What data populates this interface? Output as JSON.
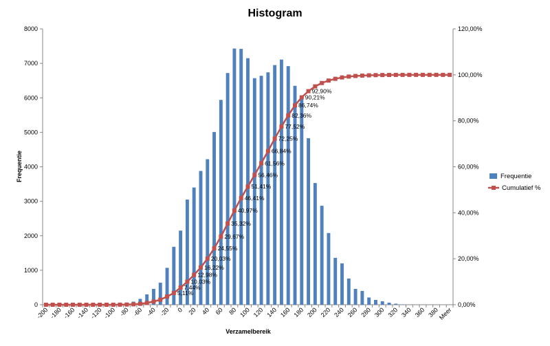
{
  "chart_data": {
    "type": "bar",
    "title": "Histogram",
    "xlabel": "Verzamelbereik",
    "ylabel": "Frequentie",
    "y2label": "",
    "ylim": [
      0,
      8000
    ],
    "y2lim": [
      0,
      120
    ],
    "yticks": [
      "0",
      "1000",
      "2000",
      "3000",
      "4000",
      "5000",
      "6000",
      "7000",
      "8000"
    ],
    "y2ticks": [
      "0,00%",
      "20,00%",
      "40,00%",
      "60,00%",
      "80,00%",
      "100,00%",
      "120,00%"
    ],
    "legend_position": "right",
    "grid": false,
    "categories": [
      "-200",
      "-190",
      "-180",
      "-170",
      "-160",
      "-150",
      "-140",
      "-130",
      "-120",
      "-110",
      "-100",
      "-90",
      "-80",
      "-70",
      "-60",
      "-50",
      "-40",
      "-30",
      "-20",
      "-10",
      "0",
      "10",
      "20",
      "30",
      "40",
      "50",
      "60",
      "70",
      "80",
      "90",
      "100",
      "110",
      "120",
      "130",
      "140",
      "150",
      "160",
      "170",
      "180",
      "190",
      "200",
      "210",
      "220",
      "230",
      "240",
      "250",
      "260",
      "270",
      "280",
      "290",
      "300",
      "310",
      "320",
      "330",
      "340",
      "350",
      "360",
      "370",
      "380",
      "390",
      "Meer"
    ],
    "xtick_labels": [
      "-200",
      "-180",
      "-160",
      "-140",
      "-120",
      "-100",
      "-80",
      "-60",
      "-40",
      "-20",
      "0",
      "20",
      "40",
      "60",
      "80",
      "100",
      "120",
      "140",
      "160",
      "180",
      "200",
      "220",
      "240",
      "260",
      "280",
      "300",
      "320",
      "340",
      "360",
      "380",
      "Meer"
    ],
    "series": [
      {
        "name": "Frequentie",
        "type": "bar",
        "color": "#4f81bd",
        "values": [
          0,
          0,
          0,
          0,
          0,
          0,
          0,
          0,
          0,
          0,
          10,
          20,
          40,
          90,
          170,
          300,
          460,
          640,
          1070,
          1680,
          2150,
          3050,
          3400,
          3880,
          4220,
          5010,
          5940,
          6720,
          7430,
          7420,
          7150,
          6570,
          6640,
          6740,
          6950,
          7110,
          6920,
          6350,
          5990,
          4830,
          3530,
          2870,
          2080,
          1360,
          1200,
          760,
          460,
          400,
          210,
          140,
          100,
          60,
          30,
          10,
          5,
          0,
          0,
          0,
          0,
          0,
          0
        ]
      },
      {
        "name": "Cumulatief %",
        "type": "line",
        "color": "#c0504d",
        "axis": "secondary",
        "values": [
          0,
          0,
          0,
          0,
          0,
          0,
          0,
          0,
          0,
          0,
          0.01,
          0.03,
          0.08,
          0.19,
          0.41,
          0.79,
          1.38,
          2.2,
          3.56,
          5.11,
          7.44,
          10.03,
          12.98,
          16.22,
          20.03,
          24.55,
          29.67,
          35.32,
          40.97,
          46.41,
          51.41,
          56.46,
          61.56,
          66.84,
          72.25,
          77.52,
          82.36,
          86.74,
          90.21,
          92.9,
          94.98,
          96.45,
          97.52,
          98.28,
          98.87,
          99.26,
          99.51,
          99.68,
          99.8,
          99.88,
          99.93,
          99.96,
          99.98,
          99.99,
          100,
          100,
          100,
          100,
          100,
          100,
          100
        ],
        "data_labels": {
          "20": "7,44%",
          "21": "10,03%",
          "22": "12,98%",
          "23": "16,22%",
          "24": "20,03%",
          "25": "24,55%",
          "26": "29,67%",
          "27": "35,32%",
          "28": "40,97%",
          "29": "46,41%",
          "30": "51,41%",
          "31": "56,46%",
          "32": "61,56%",
          "33": "66,84%",
          "34": "72,25%",
          "35": "77,52%",
          "36": "82,36%",
          "37": "86,74%",
          "38": "90,21%",
          "39": "92,90%",
          "19": "5,11%"
        }
      }
    ]
  }
}
